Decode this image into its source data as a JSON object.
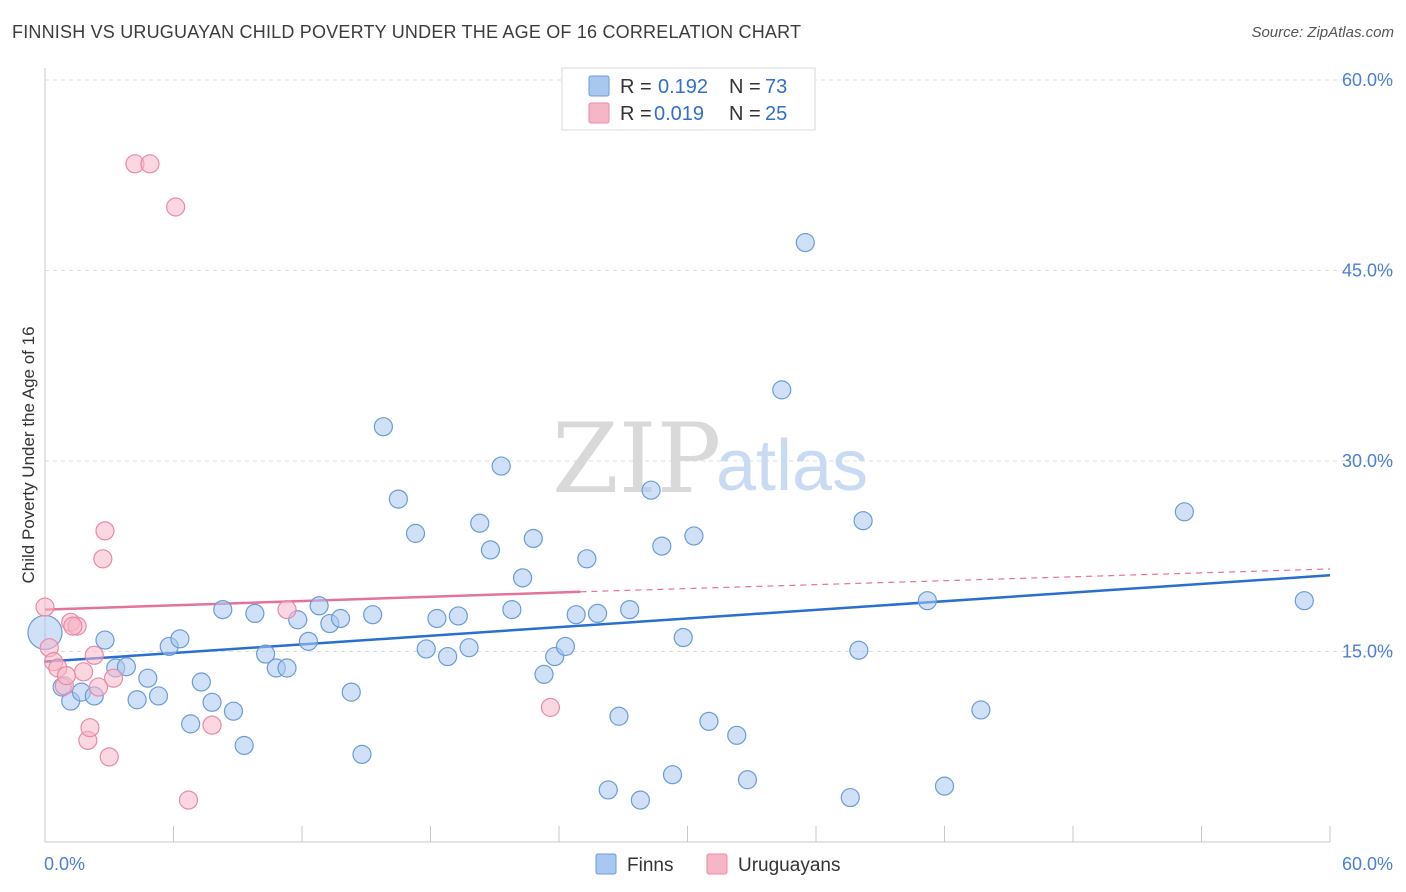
{
  "header": {
    "title": "FINNISH VS URUGUAYAN CHILD POVERTY UNDER THE AGE OF 16 CORRELATION CHART",
    "source": "Source: ZipAtlas.com"
  },
  "legend_top": {
    "rows": [
      {
        "r_label": "R =",
        "r_value": "0.192",
        "n_label": "N =",
        "n_value": "73",
        "color": "#a9c8f0"
      },
      {
        "r_label": "R =",
        "r_value": "0.019",
        "n_label": "N =",
        "n_value": "25",
        "color": "#f7b6c8"
      }
    ]
  },
  "legend_bottom": {
    "items": [
      {
        "label": "Finns",
        "color": "#a9c8f0"
      },
      {
        "label": "Uruguayans",
        "color": "#f7b6c8"
      }
    ]
  },
  "watermark": {
    "zip": "ZIP",
    "atlas": "atlas"
  },
  "chart_data": {
    "type": "scatter",
    "title": "FINNISH VS URUGUAYAN CHILD POVERTY UNDER THE AGE OF 16 CORRELATION CHART",
    "xlabel": "",
    "ylabel": "Child Poverty Under the Age of 16",
    "xlim": [
      0,
      60
    ],
    "ylim": [
      0,
      60
    ],
    "x_tick_labels": [
      "0.0%",
      "60.0%"
    ],
    "y_tick_labels": [
      "15.0%",
      "30.0%",
      "45.0%",
      "60.0%"
    ],
    "y_ticks": [
      15,
      30,
      45,
      60
    ],
    "grid": true,
    "legend_placement": "top-center",
    "series": [
      {
        "name": "Finns",
        "color": "#a9c8f0",
        "stroke": "#6b9bd8",
        "trend": {
          "x": [
            0,
            60
          ],
          "y": [
            14.2,
            21.0
          ],
          "color": "#2a6ed0"
        },
        "points": [
          [
            0.0,
            16.5
          ],
          [
            0.8,
            12.2
          ],
          [
            1.2,
            11.1
          ],
          [
            1.7,
            11.8
          ],
          [
            2.3,
            11.5
          ],
          [
            2.8,
            15.9
          ],
          [
            3.3,
            13.7
          ],
          [
            3.8,
            13.8
          ],
          [
            4.3,
            11.2
          ],
          [
            4.8,
            12.9
          ],
          [
            5.3,
            11.5
          ],
          [
            5.8,
            15.4
          ],
          [
            6.3,
            16.0
          ],
          [
            6.8,
            9.3
          ],
          [
            7.3,
            12.6
          ],
          [
            7.8,
            11.0
          ],
          [
            8.3,
            18.3
          ],
          [
            8.8,
            10.3
          ],
          [
            9.3,
            7.6
          ],
          [
            9.8,
            18.0
          ],
          [
            10.3,
            14.8
          ],
          [
            10.8,
            13.7
          ],
          [
            11.3,
            13.7
          ],
          [
            11.8,
            17.5
          ],
          [
            12.3,
            15.8
          ],
          [
            12.8,
            18.6
          ],
          [
            13.3,
            17.2
          ],
          [
            13.8,
            17.6
          ],
          [
            14.3,
            11.8
          ],
          [
            14.8,
            6.9
          ],
          [
            15.3,
            17.9
          ],
          [
            15.8,
            32.7
          ],
          [
            16.5,
            27.0
          ],
          [
            17.3,
            24.3
          ],
          [
            17.8,
            15.2
          ],
          [
            18.3,
            17.6
          ],
          [
            18.8,
            14.6
          ],
          [
            19.3,
            17.8
          ],
          [
            19.8,
            15.3
          ],
          [
            20.3,
            25.1
          ],
          [
            20.8,
            23.0
          ],
          [
            21.3,
            29.6
          ],
          [
            21.8,
            18.3
          ],
          [
            22.3,
            20.8
          ],
          [
            22.8,
            23.9
          ],
          [
            23.3,
            13.2
          ],
          [
            23.8,
            14.6
          ],
          [
            24.3,
            15.4
          ],
          [
            24.8,
            17.9
          ],
          [
            25.3,
            22.3
          ],
          [
            25.8,
            18.0
          ],
          [
            26.3,
            4.1
          ],
          [
            26.8,
            9.9
          ],
          [
            27.3,
            18.3
          ],
          [
            27.8,
            3.3
          ],
          [
            28.3,
            27.7
          ],
          [
            28.8,
            23.3
          ],
          [
            29.3,
            5.3
          ],
          [
            29.8,
            16.1
          ],
          [
            30.3,
            24.1
          ],
          [
            31.0,
            9.5
          ],
          [
            32.3,
            8.4
          ],
          [
            32.8,
            4.9
          ],
          [
            34.4,
            35.6
          ],
          [
            35.5,
            47.2
          ],
          [
            37.6,
            3.5
          ],
          [
            38.0,
            15.1
          ],
          [
            38.2,
            25.3
          ],
          [
            41.2,
            19.0
          ],
          [
            42.0,
            4.4
          ],
          [
            43.7,
            10.4
          ],
          [
            53.2,
            26.0
          ],
          [
            58.8,
            19.0
          ]
        ]
      },
      {
        "name": "Uruguayans",
        "color": "#f7b6c8",
        "stroke": "#e98aa6",
        "trend": {
          "x": [
            0,
            25
          ],
          "y": [
            18.3,
            19.7
          ],
          "color": "#e4739a",
          "dashed_extension_to": [
            60,
            21.5
          ]
        },
        "points": [
          [
            0.0,
            18.5
          ],
          [
            0.2,
            15.3
          ],
          [
            0.4,
            14.2
          ],
          [
            0.6,
            13.7
          ],
          [
            0.9,
            12.3
          ],
          [
            1.0,
            13.1
          ],
          [
            1.2,
            17.3
          ],
          [
            1.5,
            17.0
          ],
          [
            1.8,
            13.4
          ],
          [
            2.0,
            8.0
          ],
          [
            2.1,
            9.0
          ],
          [
            2.3,
            14.7
          ],
          [
            2.5,
            12.2
          ],
          [
            2.7,
            22.3
          ],
          [
            2.8,
            24.5
          ],
          [
            3.0,
            6.7
          ],
          [
            3.2,
            12.9
          ],
          [
            4.2,
            53.4
          ],
          [
            4.9,
            53.4
          ],
          [
            6.1,
            50.0
          ],
          [
            6.7,
            3.3
          ],
          [
            7.8,
            9.2
          ],
          [
            11.3,
            18.3
          ],
          [
            23.6,
            10.6
          ],
          [
            1.3,
            17.0
          ]
        ]
      }
    ]
  }
}
